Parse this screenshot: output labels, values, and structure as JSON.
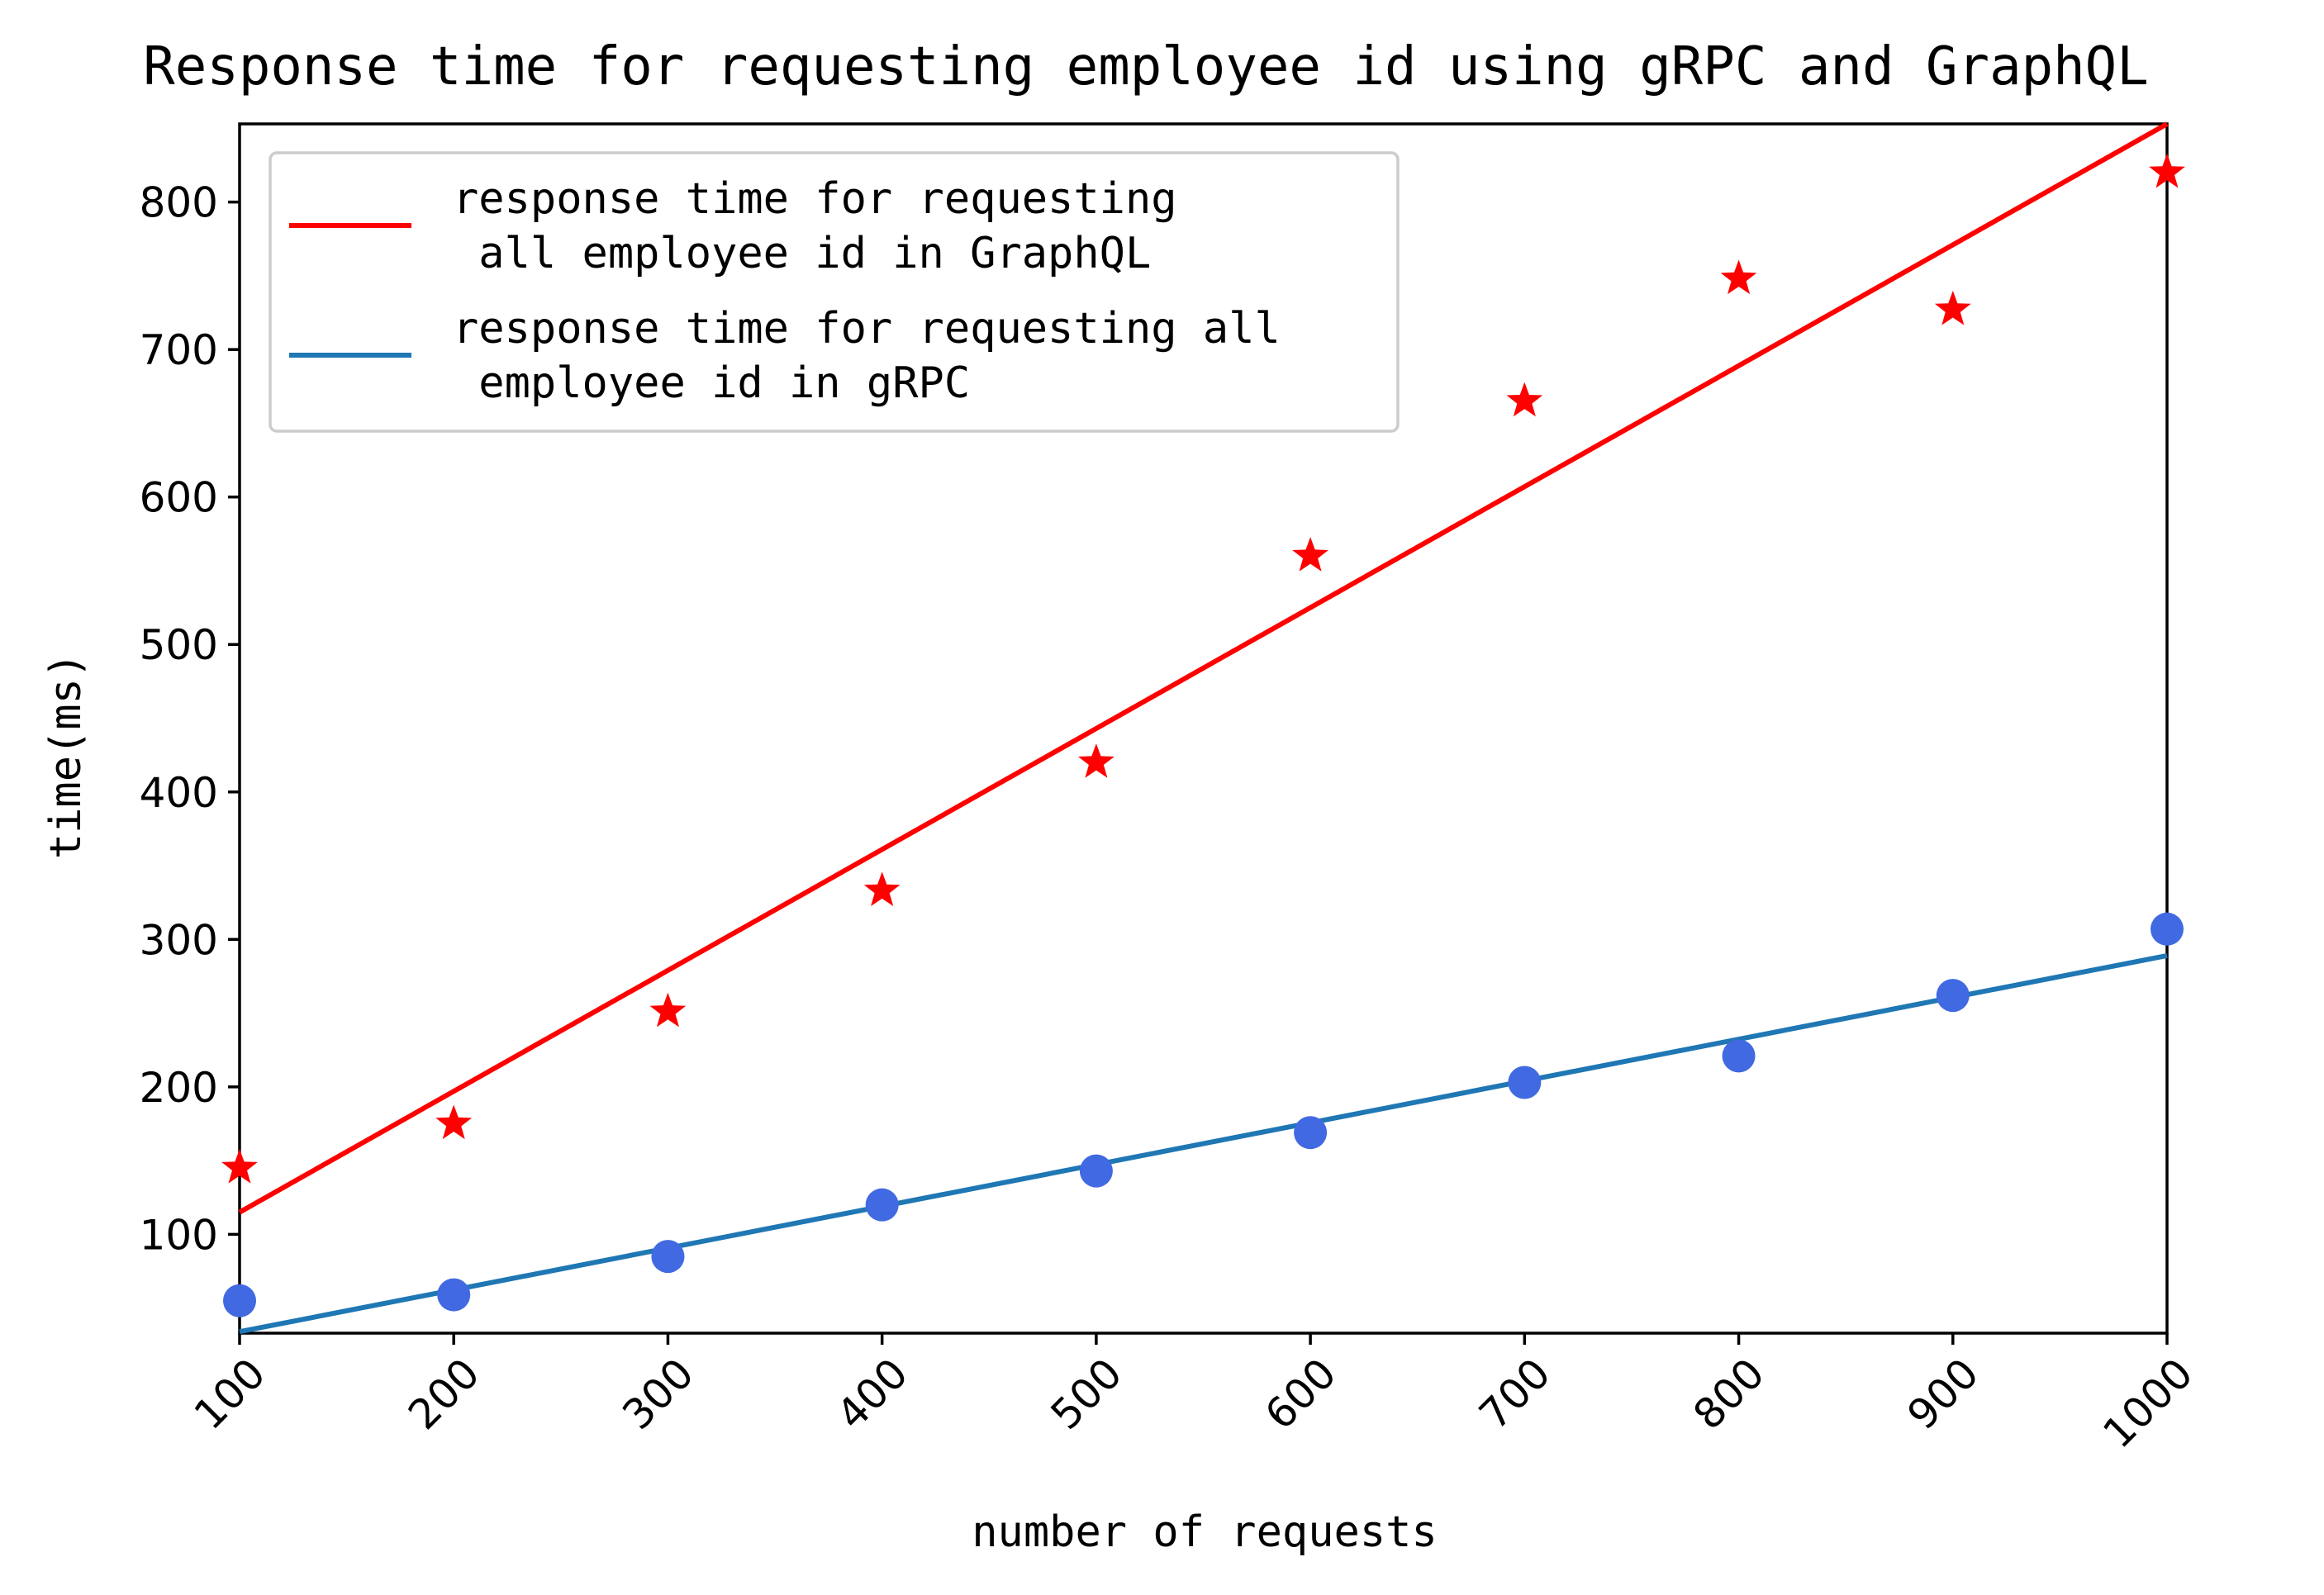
{
  "chart_data": {
    "type": "line",
    "title": "Response time for requesting employee id using gRPC and GraphQL",
    "xlabel": "number of requests",
    "ylabel": "time(ms)",
    "xlim": [
      100,
      1000
    ],
    "ylim": [
      33,
      853
    ],
    "x_ticks": [
      100,
      200,
      300,
      400,
      500,
      600,
      700,
      800,
      900,
      1000
    ],
    "y_ticks": [
      100,
      200,
      300,
      400,
      500,
      600,
      700,
      800
    ],
    "grid": false,
    "legend_position": "upper-left",
    "series": [
      {
        "name": "response time for requesting\n all employee id in GraphQL",
        "kind": "fit-line",
        "color": "#ff0000",
        "x": [
          100,
          1000
        ],
        "y": [
          115,
          853
        ]
      },
      {
        "name": "response time for requesting all\n employee id in gRPC",
        "kind": "fit-line",
        "color": "#1f77b4",
        "x": [
          100,
          1000
        ],
        "y": [
          34,
          289
        ]
      },
      {
        "kind": "scatter",
        "marker": "star",
        "color": "#ff0000",
        "x": [
          100,
          200,
          300,
          400,
          500,
          600,
          700,
          800,
          900,
          1000
        ],
        "y": [
          145,
          175,
          251,
          333,
          420,
          560,
          665,
          748,
          727,
          820
        ]
      },
      {
        "kind": "scatter",
        "marker": "circle",
        "color": "#4169e1",
        "x": [
          100,
          200,
          300,
          400,
          500,
          600,
          700,
          800,
          900,
          1000
        ],
        "y": [
          55,
          59,
          85,
          120,
          143,
          169,
          203,
          221,
          262,
          307
        ]
      }
    ]
  }
}
